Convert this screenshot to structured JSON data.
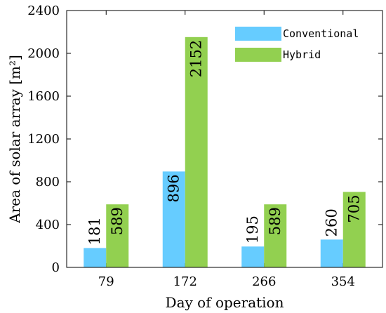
{
  "chart_data": {
    "type": "bar",
    "categories": [
      "79",
      "172",
      "266",
      "354"
    ],
    "series": [
      {
        "name": "Conventional",
        "values": [
          181,
          896,
          195,
          260
        ],
        "color": "#66ccff"
      },
      {
        "name": "Hybrid",
        "values": [
          589,
          2152,
          589,
          705
        ],
        "color": "#92d050"
      }
    ],
    "xlabel": "Day of operation",
    "ylabel": "Area of solar array [m²]",
    "ylim": [
      0,
      2400
    ],
    "yticks": [
      0,
      400,
      800,
      1200,
      1600,
      2000,
      2400
    ],
    "grid": false,
    "legend_position": "top-right"
  }
}
